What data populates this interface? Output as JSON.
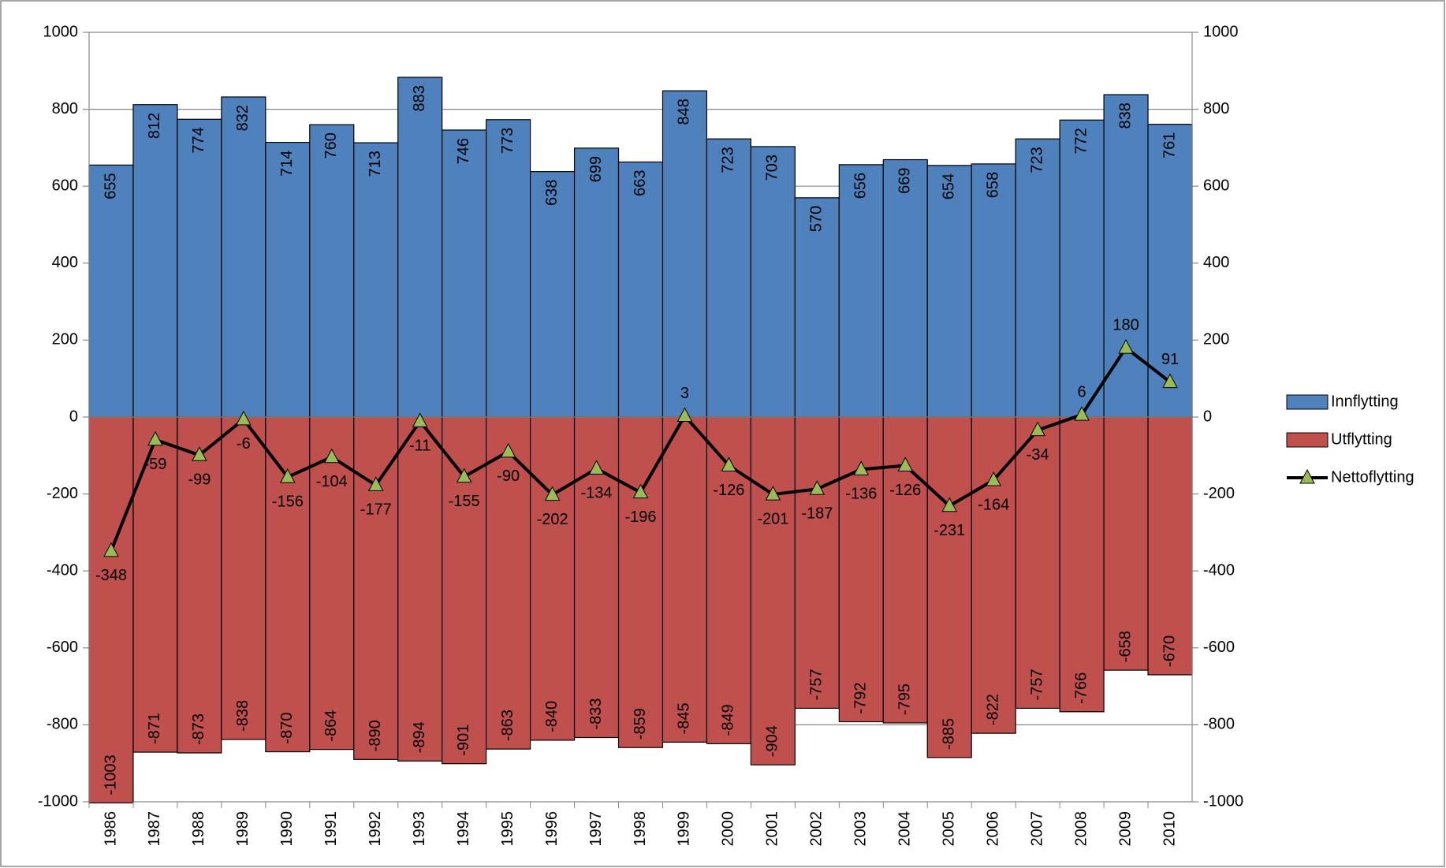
{
  "chart_data": {
    "type": "bar_line",
    "categories": [
      "1986",
      "1987",
      "1988",
      "1989",
      "1990",
      "1991",
      "1992",
      "1993",
      "1994",
      "1995",
      "1996",
      "1997",
      "1998",
      "1999",
      "2000",
      "2001",
      "2002",
      "2003",
      "2004",
      "2005",
      "2006",
      "2007",
      "2008",
      "2009",
      "2010"
    ],
    "series": [
      {
        "name": "Innflytting",
        "type": "bar",
        "color": "#4f81bd",
        "values": [
          655,
          812,
          774,
          832,
          714,
          760,
          713,
          883,
          746,
          773,
          638,
          699,
          663,
          848,
          723,
          703,
          570,
          656,
          669,
          654,
          658,
          723,
          772,
          838,
          761
        ]
      },
      {
        "name": "Utflytting",
        "type": "bar",
        "color": "#c0504d",
        "values": [
          -1003,
          -871,
          -873,
          -838,
          -870,
          -864,
          -890,
          -894,
          -901,
          -863,
          -840,
          -833,
          -859,
          -845,
          -849,
          -904,
          -757,
          -792,
          -795,
          -885,
          -822,
          -757,
          -766,
          -658,
          -670
        ]
      },
      {
        "name": "Nettoflytting",
        "type": "line",
        "axis": "y2",
        "color": "#000000",
        "marker_color": "#9bbb59",
        "values": [
          -348,
          -59,
          -99,
          -6,
          -156,
          -104,
          -177,
          -11,
          -155,
          -90,
          -202,
          -134,
          -196,
          3,
          -126,
          -201,
          -187,
          -136,
          -126,
          -231,
          -164,
          -34,
          6,
          180,
          91
        ]
      }
    ],
    "ylim": [
      -1000,
      1000
    ],
    "yticks": [
      -1000,
      -800,
      -600,
      -400,
      -200,
      0,
      200,
      400,
      600,
      800,
      1000
    ],
    "y2lim": [
      -1000,
      1000
    ],
    "y2ticks": [
      -1000,
      -800,
      -600,
      -400,
      -200,
      0,
      200,
      400,
      600,
      800,
      1000
    ],
    "grid": true,
    "legend": "right"
  }
}
